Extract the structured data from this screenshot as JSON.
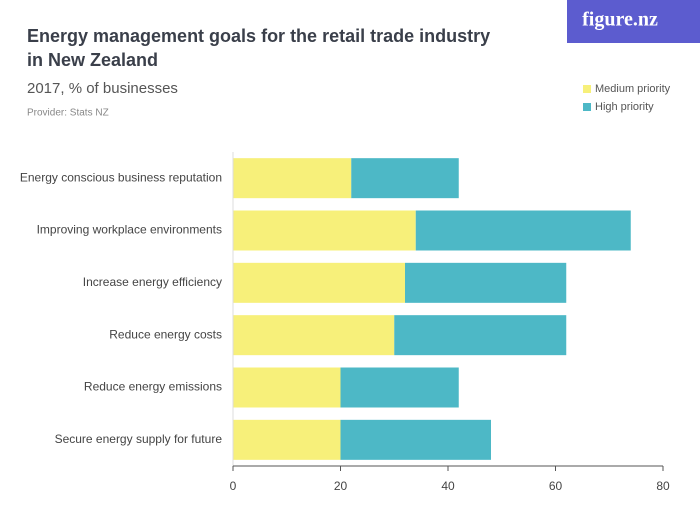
{
  "brand": "figure.nz",
  "chart_data": {
    "type": "stacked-bar-horizontal",
    "title": "Energy management goals for the retail trade industry\nin New Zealand",
    "subtitle": "2017, % of businesses",
    "provider": "Provider: Stats NZ",
    "categories": [
      "Energy conscious business reputation",
      "Improving workplace environments",
      "Increase energy efficiency",
      "Reduce energy costs",
      "Reduce energy emissions",
      "Secure energy supply for future"
    ],
    "series": [
      {
        "name": "Medium priority",
        "color": "#f7f07a",
        "values": [
          22,
          34,
          32,
          30,
          20,
          20
        ]
      },
      {
        "name": "High priority",
        "color": "#4db8c6",
        "values": [
          20,
          40,
          30,
          32,
          22,
          28
        ]
      }
    ],
    "xlim": [
      0,
      80
    ],
    "xticks": [
      0,
      20,
      40,
      60,
      80
    ],
    "legend": "top-right"
  }
}
